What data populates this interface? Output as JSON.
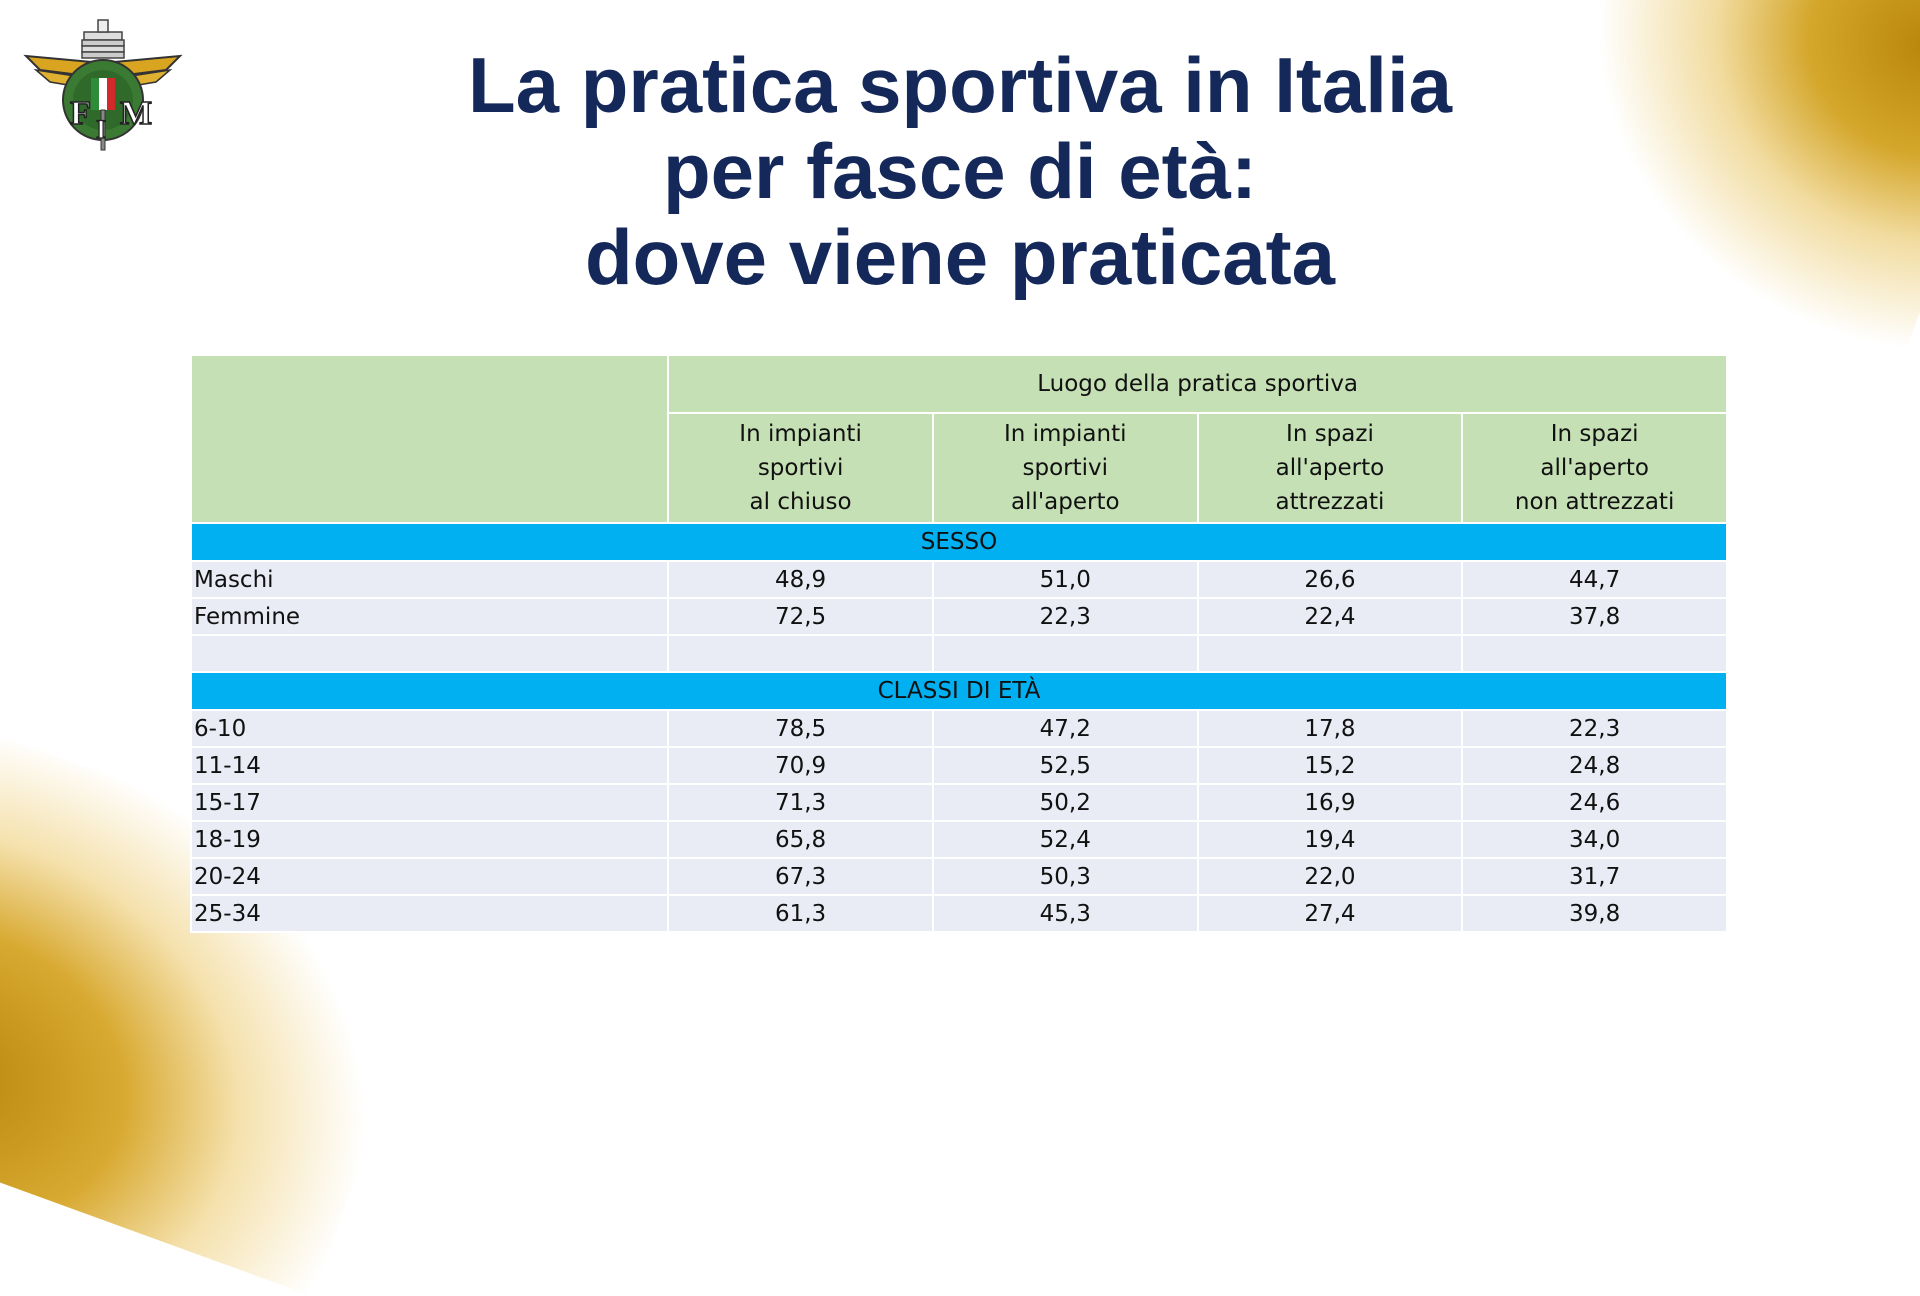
{
  "title": {
    "line1": "La pratica sportiva in Italia",
    "line2": "per fasce di età:",
    "line3": "dove viene praticata"
  },
  "logo": {
    "letters": [
      "F",
      "M",
      "I"
    ],
    "icon": "fmi-winged-logo"
  },
  "table": {
    "group_header": "Luogo della pratica sportiva",
    "columns": [
      [
        "In impianti",
        "sportivi",
        "al chiuso"
      ],
      [
        "In impianti",
        "sportivi",
        "all'aperto"
      ],
      [
        "In spazi",
        "all'aperto",
        "attrezzati"
      ],
      [
        "In spazi",
        "all'aperto",
        "non attrezzati"
      ]
    ],
    "sections": [
      {
        "title": "SESSO",
        "rows": [
          {
            "label": "Maschi",
            "values": [
              "48,9",
              "51,0",
              "26,6",
              "44,7"
            ]
          },
          {
            "label": "Femmine",
            "values": [
              "72,5",
              "22,3",
              "22,4",
              "37,8"
            ]
          },
          {
            "label": "",
            "values": [
              "",
              "",
              "",
              ""
            ]
          }
        ]
      },
      {
        "title": "CLASSI DI ETÀ",
        "rows": [
          {
            "label": "6-10",
            "values": [
              "78,5",
              "47,2",
              "17,8",
              "22,3"
            ]
          },
          {
            "label": "11-14",
            "values": [
              "70,9",
              "52,5",
              "15,2",
              "24,8"
            ]
          },
          {
            "label": "15-17",
            "values": [
              "71,3",
              "50,2",
              "16,9",
              "24,6"
            ]
          },
          {
            "label": "18-19",
            "values": [
              "65,8",
              "52,4",
              "19,4",
              "34,0"
            ]
          },
          {
            "label": "20-24",
            "values": [
              "67,3",
              "50,3",
              "22,0",
              "31,7"
            ]
          },
          {
            "label": "25-34",
            "values": [
              "61,3",
              "45,3",
              "27,4",
              "39,8"
            ]
          }
        ]
      }
    ]
  },
  "colors": {
    "title": "#14285a",
    "header_bg": "#c5e0b4",
    "section_bg": "#00b0f0",
    "row_bg": "#e9ebf5",
    "gold": "#d4a62a"
  }
}
